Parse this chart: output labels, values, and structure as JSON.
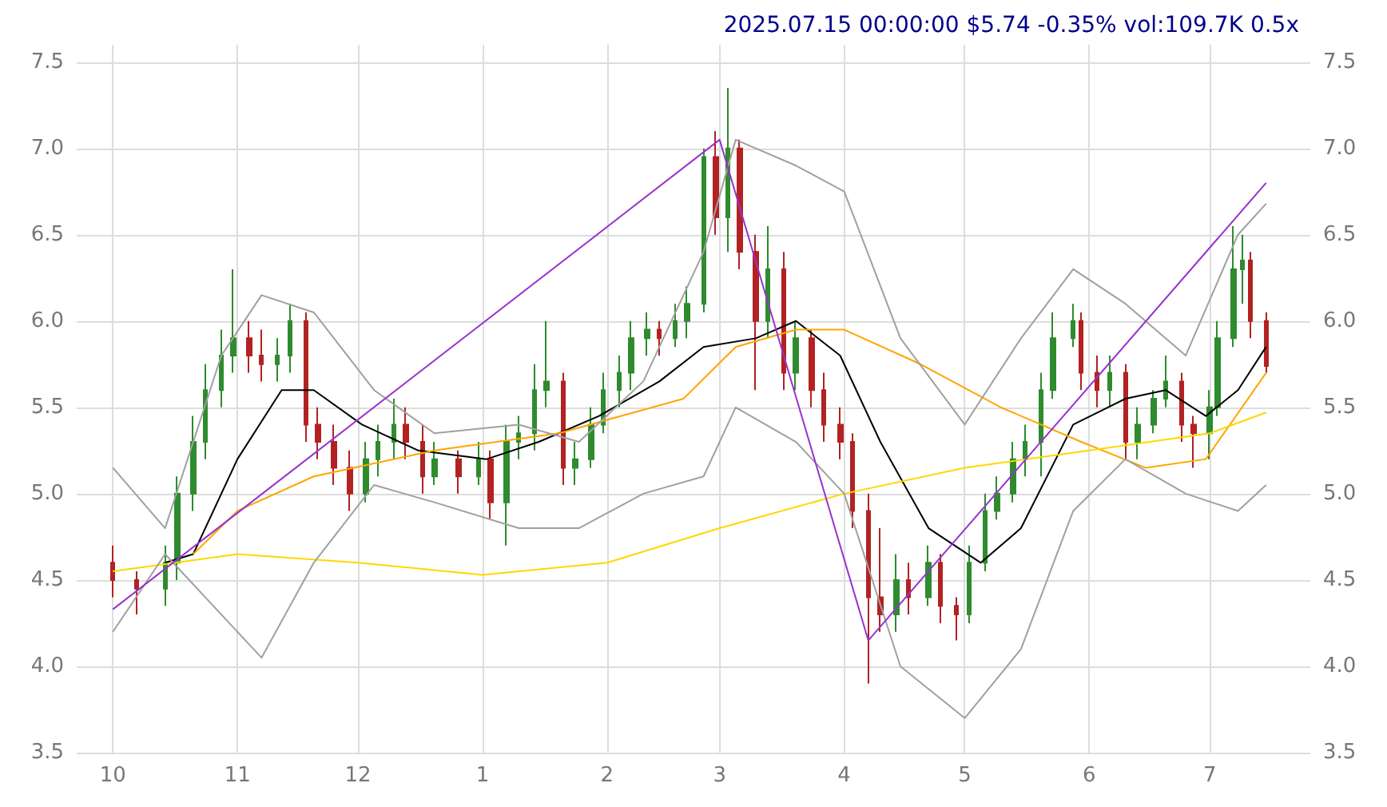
{
  "chart_data": {
    "type": "candlestick",
    "title": "2025.07.15 00:00:00 $5.74 -0.35% vol:109.7K 0.5x",
    "xlim": [
      "2024-09-22",
      "2025-07-26"
    ],
    "xticks": [
      {
        "value": "2024-10-01",
        "label": "10"
      },
      {
        "value": "2024-11-01",
        "label": "11"
      },
      {
        "value": "2024-12-01",
        "label": "12"
      },
      {
        "value": "2025-01-01",
        "label": "1"
      },
      {
        "value": "2025-02-01",
        "label": "2"
      },
      {
        "value": "2025-03-01",
        "label": "3"
      },
      {
        "value": "2025-04-01",
        "label": "4"
      },
      {
        "value": "2025-05-01",
        "label": "5"
      },
      {
        "value": "2025-06-01",
        "label": "6"
      },
      {
        "value": "2025-07-01",
        "label": "7"
      }
    ],
    "ylim": [
      3.5,
      7.6
    ],
    "yticks": [
      3.5,
      {
        "value": 4,
        "label": "4.0"
      },
      4.5,
      {
        "value": 5,
        "label": "5.0"
      },
      5.5,
      {
        "value": 6,
        "label": "6.0"
      },
      6.5,
      {
        "value": 7,
        "label": "7.0"
      },
      7.5
    ],
    "y2lim": [
      3.5,
      7.6
    ],
    "y2ticks": [
      3.5,
      {
        "value": 4,
        "label": "4.0"
      },
      4.5,
      {
        "value": 5,
        "label": "5.0"
      },
      5.5,
      {
        "value": 6,
        "label": "6.0"
      },
      6.5,
      {
        "value": 7,
        "label": "7.0"
      },
      7.5
    ],
    "grid": true,
    "series": [
      {
        "x": [
          "2024-10-01",
          "2024-10-07",
          "2024-10-14",
          "2024-10-17",
          "2024-10-21",
          "2024-10-24",
          "2024-10-28",
          "2024-10-31",
          "2024-11-04",
          "2024-11-07",
          "2024-11-11",
          "2024-11-14",
          "2024-11-18",
          "2024-11-21",
          "2024-11-25",
          "2024-11-29",
          "2024-12-03",
          "2024-12-06",
          "2024-12-10",
          "2024-12-13",
          "2024-12-17",
          "2024-12-20",
          "2024-12-26",
          "2024-12-31",
          "2025-01-03",
          "2025-01-07",
          "2025-01-10",
          "2025-01-14",
          "2025-01-17",
          "2025-01-21",
          "2025-01-24",
          "2025-01-28",
          "2025-01-31",
          "2025-02-04",
          "2025-02-07",
          "2025-02-11",
          "2025-02-14",
          "2025-02-18",
          "2025-02-21",
          "2025-02-25",
          "2025-02-28",
          "2025-03-03",
          "2025-03-06",
          "2025-03-10",
          "2025-03-13",
          "2025-03-17",
          "2025-03-20",
          "2025-03-24",
          "2025-03-27",
          "2025-03-31",
          "2025-04-03",
          "2025-04-07",
          "2025-04-10",
          "2025-04-14",
          "2025-04-17",
          "2025-04-22",
          "2025-04-25",
          "2025-04-29",
          "2025-05-02",
          "2025-05-06",
          "2025-05-09",
          "2025-05-13",
          "2025-05-16",
          "2025-05-20",
          "2025-05-23",
          "2025-05-28",
          "2025-05-30",
          "2025-06-03",
          "2025-06-06",
          "2025-06-10",
          "2025-06-13",
          "2025-06-17",
          "2025-06-20",
          "2025-06-24",
          "2025-06-27",
          "2025-07-01",
          "2025-07-03",
          "2025-07-07",
          "2025-07-09",
          "2025-07-11",
          "2025-07-15"
        ],
        "ohlc": [
          [
            4.6,
            4.7,
            4.4,
            4.5
          ],
          [
            4.5,
            4.55,
            4.3,
            4.45
          ],
          [
            4.45,
            4.7,
            4.35,
            4.6
          ],
          [
            4.6,
            5.1,
            4.5,
            5.0
          ],
          [
            5.0,
            5.45,
            4.9,
            5.3
          ],
          [
            5.3,
            5.75,
            5.2,
            5.6
          ],
          [
            5.6,
            5.95,
            5.5,
            5.8
          ],
          [
            5.8,
            6.3,
            5.7,
            5.9
          ],
          [
            5.9,
            6.0,
            5.7,
            5.8
          ],
          [
            5.8,
            5.95,
            5.65,
            5.75
          ],
          [
            5.75,
            5.9,
            5.65,
            5.8
          ],
          [
            5.8,
            6.1,
            5.7,
            6.0
          ],
          [
            6.0,
            6.05,
            5.3,
            5.4
          ],
          [
            5.4,
            5.5,
            5.2,
            5.3
          ],
          [
            5.3,
            5.4,
            5.05,
            5.15
          ],
          [
            5.15,
            5.25,
            4.9,
            5.0
          ],
          [
            5.0,
            5.3,
            4.95,
            5.2
          ],
          [
            5.2,
            5.4,
            5.1,
            5.3
          ],
          [
            5.3,
            5.55,
            5.2,
            5.4
          ],
          [
            5.4,
            5.5,
            5.2,
            5.3
          ],
          [
            5.3,
            5.4,
            5.0,
            5.1
          ],
          [
            5.1,
            5.3,
            5.05,
            5.2
          ],
          [
            5.2,
            5.25,
            5.0,
            5.1
          ],
          [
            5.1,
            5.3,
            5.05,
            5.2
          ],
          [
            5.2,
            5.25,
            4.85,
            4.95
          ],
          [
            4.95,
            5.4,
            4.7,
            5.3
          ],
          [
            5.3,
            5.45,
            5.2,
            5.35
          ],
          [
            5.35,
            5.75,
            5.25,
            5.6
          ],
          [
            5.6,
            6.0,
            5.5,
            5.65
          ],
          [
            5.65,
            5.7,
            5.05,
            5.15
          ],
          [
            5.15,
            5.3,
            5.05,
            5.2
          ],
          [
            5.2,
            5.5,
            5.15,
            5.4
          ],
          [
            5.4,
            5.7,
            5.35,
            5.6
          ],
          [
            5.6,
            5.8,
            5.5,
            5.7
          ],
          [
            5.7,
            6.0,
            5.6,
            5.9
          ],
          [
            5.9,
            6.05,
            5.8,
            5.95
          ],
          [
            5.95,
            6.0,
            5.8,
            5.9
          ],
          [
            5.9,
            6.1,
            5.85,
            6.0
          ],
          [
            6.0,
            6.2,
            5.9,
            6.1
          ],
          [
            6.1,
            7.0,
            6.05,
            6.95
          ],
          [
            6.95,
            7.1,
            6.5,
            6.6
          ],
          [
            6.6,
            7.35,
            6.4,
            7.0
          ],
          [
            7.0,
            7.05,
            6.3,
            6.4
          ],
          [
            6.4,
            6.5,
            5.6,
            6.0
          ],
          [
            6.0,
            6.55,
            5.9,
            6.3
          ],
          [
            6.3,
            6.4,
            5.6,
            5.7
          ],
          [
            5.7,
            6.0,
            5.6,
            5.9
          ],
          [
            5.9,
            5.95,
            5.5,
            5.6
          ],
          [
            5.6,
            5.7,
            5.3,
            5.4
          ],
          [
            5.4,
            5.5,
            5.2,
            5.3
          ],
          [
            5.3,
            5.35,
            4.8,
            4.9
          ],
          [
            4.9,
            5.0,
            3.9,
            4.4
          ],
          [
            4.4,
            4.8,
            4.2,
            4.3
          ],
          [
            4.3,
            4.65,
            4.2,
            4.5
          ],
          [
            4.5,
            4.6,
            4.3,
            4.4
          ],
          [
            4.4,
            4.7,
            4.35,
            4.6
          ],
          [
            4.6,
            4.65,
            4.25,
            4.35
          ],
          [
            4.35,
            4.4,
            4.15,
            4.3
          ],
          [
            4.3,
            4.7,
            4.25,
            4.6
          ],
          [
            4.6,
            5.0,
            4.55,
            4.9
          ],
          [
            4.9,
            5.1,
            4.85,
            5.0
          ],
          [
            5.0,
            5.3,
            4.95,
            5.2
          ],
          [
            5.2,
            5.4,
            5.1,
            5.3
          ],
          [
            5.3,
            5.7,
            5.1,
            5.6
          ],
          [
            5.6,
            6.05,
            5.55,
            5.9
          ],
          [
            5.9,
            6.1,
            5.85,
            6.0
          ],
          [
            6.0,
            6.05,
            5.6,
            5.7
          ],
          [
            5.7,
            5.8,
            5.5,
            5.6
          ],
          [
            5.6,
            5.8,
            5.5,
            5.7
          ],
          [
            5.7,
            5.75,
            5.2,
            5.3
          ],
          [
            5.3,
            5.5,
            5.2,
            5.4
          ],
          [
            5.4,
            5.6,
            5.35,
            5.55
          ],
          [
            5.55,
            5.8,
            5.5,
            5.65
          ],
          [
            5.65,
            5.7,
            5.3,
            5.4
          ],
          [
            5.4,
            5.45,
            5.15,
            5.35
          ],
          [
            5.35,
            5.6,
            5.2,
            5.5
          ],
          [
            5.5,
            6.0,
            5.45,
            5.9
          ],
          [
            5.9,
            6.55,
            5.85,
            6.3
          ],
          [
            6.3,
            6.5,
            6.1,
            6.35
          ],
          [
            6.35,
            6.4,
            5.9,
            6.0
          ],
          [
            6.0,
            6.05,
            5.7,
            5.74
          ]
        ],
        "colors": [
          "#b22222",
          "#b22222",
          "#2e8b2e",
          "#2e8b2e",
          "#2e8b2e",
          "#2e8b2e",
          "#2e8b2e",
          "#2e8b2e",
          "#b22222",
          "#b22222",
          "#2e8b2e",
          "#2e8b2e",
          "#b22222",
          "#b22222",
          "#b22222",
          "#b22222",
          "#2e8b2e",
          "#2e8b2e",
          "#2e8b2e",
          "#b22222",
          "#b22222",
          "#2e8b2e",
          "#b22222",
          "#2e8b2e",
          "#b22222",
          "#2e8b2e",
          "#2e8b2e",
          "#2e8b2e",
          "#2e8b2e",
          "#b22222",
          "#2e8b2e",
          "#2e8b2e",
          "#2e8b2e",
          "#2e8b2e",
          "#2e8b2e",
          "#2e8b2e",
          "#b22222",
          "#2e8b2e",
          "#2e8b2e",
          "#2e8b2e",
          "#b22222",
          "#2e8b2e",
          "#b22222",
          "#b22222",
          "#2e8b2e",
          "#b22222",
          "#2e8b2e",
          "#b22222",
          "#b22222",
          "#b22222",
          "#b22222",
          "#b22222",
          "#b22222",
          "#2e8b2e",
          "#b22222",
          "#2e8b2e",
          "#b22222",
          "#b22222",
          "#2e8b2e",
          "#2e8b2e",
          "#2e8b2e",
          "#2e8b2e",
          "#2e8b2e",
          "#2e8b2e",
          "#2e8b2e",
          "#2e8b2e",
          "#b22222",
          "#b22222",
          "#2e8b2e",
          "#b22222",
          "#2e8b2e",
          "#2e8b2e",
          "#2e8b2e",
          "#b22222",
          "#b22222",
          "#2e8b2e",
          "#2e8b2e",
          "#2e8b2e",
          "#2e8b2e",
          "#b22222",
          "#b22222"
        ]
      },
      {
        "type": "line",
        "color": "#000000",
        "x": [
          "2024-10-14",
          "2024-10-21",
          "2024-11-01",
          "2024-11-12",
          "2024-11-20",
          "2024-12-02",
          "2024-12-16",
          "2025-01-02",
          "2025-01-15",
          "2025-01-30",
          "2025-02-14",
          "2025-02-25",
          "2025-03-10",
          "2025-03-20",
          "2025-03-31",
          "2025-04-10",
          "2025-04-22",
          "2025-05-05",
          "2025-05-15",
          "2025-05-28",
          "2025-06-10",
          "2025-06-20",
          "2025-06-30",
          "2025-07-08",
          "2025-07-15"
        ],
        "values": [
          4.6,
          4.65,
          5.2,
          5.6,
          5.6,
          5.4,
          5.25,
          5.2,
          5.3,
          5.45,
          5.65,
          5.85,
          5.9,
          6.0,
          5.8,
          5.3,
          4.8,
          4.6,
          4.8,
          5.4,
          5.55,
          5.6,
          5.45,
          5.6,
          5.85
        ]
      },
      {
        "type": "line",
        "color": "#ffa500",
        "x": [
          "2024-10-21",
          "2024-11-01",
          "2024-11-20",
          "2024-12-20",
          "2025-01-20",
          "2025-02-20",
          "2025-03-05",
          "2025-03-20",
          "2025-04-01",
          "2025-04-20",
          "2025-05-10",
          "2025-05-30",
          "2025-06-15",
          "2025-06-30",
          "2025-07-15"
        ],
        "values": [
          4.65,
          4.9,
          5.1,
          5.25,
          5.35,
          5.55,
          5.85,
          5.95,
          5.95,
          5.75,
          5.5,
          5.3,
          5.15,
          5.2,
          5.7
        ]
      },
      {
        "type": "line",
        "color": "#ffd700",
        "x": [
          "2024-10-01",
          "2024-11-01",
          "2024-12-01",
          "2025-01-01",
          "2025-02-01",
          "2025-03-01",
          "2025-04-01",
          "2025-05-01",
          "2025-06-01",
          "2025-07-01",
          "2025-07-15"
        ],
        "values": [
          4.55,
          4.65,
          4.6,
          4.53,
          4.6,
          4.8,
          5.0,
          5.15,
          5.25,
          5.35,
          5.47
        ]
      },
      {
        "type": "line",
        "color": "#a0a0a0",
        "x": [
          "2024-10-01",
          "2024-10-14",
          "2024-10-28",
          "2024-11-07",
          "2024-11-20",
          "2024-12-05",
          "2024-12-20",
          "2025-01-10",
          "2025-01-25",
          "2025-02-10",
          "2025-02-25",
          "2025-03-05",
          "2025-03-20",
          "2025-04-01",
          "2025-04-15",
          "2025-05-01",
          "2025-05-15",
          "2025-05-28",
          "2025-06-10",
          "2025-06-25",
          "2025-07-08",
          "2025-07-15"
        ],
        "values": [
          5.15,
          4.8,
          5.8,
          6.15,
          6.05,
          5.6,
          5.35,
          5.4,
          5.3,
          5.65,
          6.4,
          7.05,
          6.9,
          6.75,
          5.9,
          5.4,
          5.9,
          6.3,
          6.1,
          5.8,
          6.5,
          6.68
        ]
      },
      {
        "type": "line",
        "color": "#a0a0a0",
        "x": [
          "2024-10-01",
          "2024-10-14",
          "2024-10-28",
          "2024-11-07",
          "2024-11-20",
          "2024-12-05",
          "2024-12-20",
          "2025-01-10",
          "2025-01-25",
          "2025-02-10",
          "2025-02-25",
          "2025-03-05",
          "2025-03-20",
          "2025-04-01",
          "2025-04-15",
          "2025-05-01",
          "2025-05-15",
          "2025-05-28",
          "2025-06-10",
          "2025-06-25",
          "2025-07-08",
          "2025-07-15"
        ],
        "values": [
          4.2,
          4.65,
          4.3,
          4.05,
          4.6,
          5.05,
          4.95,
          4.8,
          4.8,
          5.0,
          5.1,
          5.5,
          5.3,
          5.0,
          4.0,
          3.7,
          4.1,
          4.9,
          5.2,
          5.0,
          4.9,
          5.05
        ]
      },
      {
        "type": "line",
        "color": "#9932cc",
        "x": [
          "2024-10-01",
          "2025-03-01",
          "2025-04-07",
          "2025-07-15"
        ],
        "values": [
          4.33,
          7.05,
          4.15,
          6.8
        ]
      }
    ]
  }
}
